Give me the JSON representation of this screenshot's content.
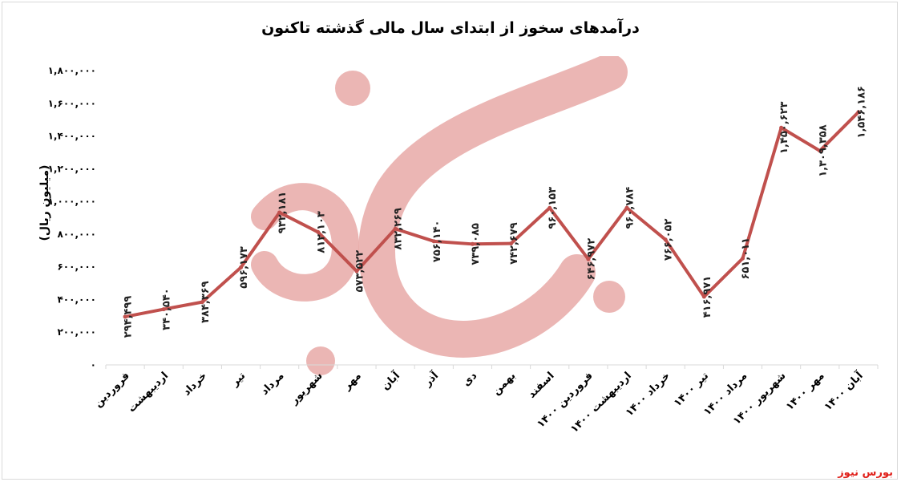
{
  "source_label": "بورس نیوز",
  "colors": {
    "line": "#c0504d",
    "watermark": "#e8a9a7",
    "source": "#e0201a",
    "grid": "#d9d9d9"
  },
  "watermark": {
    "text": "بورس نیوز"
  },
  "chart_data": {
    "type": "line",
    "title": "درآمدهای سخوز از ابتدای سال مالی گذشته تاکنون",
    "ylabel": "(میلیون ریال)",
    "xlabel": "",
    "ylim": [
      0,
      1800000
    ],
    "yticks": [
      0,
      200000,
      400000,
      600000,
      800000,
      1000000,
      1200000,
      1400000,
      1600000,
      1800000
    ],
    "ytick_labels": [
      "۰",
      "۲۰۰,۰۰۰",
      "۴۰۰,۰۰۰",
      "۶۰۰,۰۰۰",
      "۸۰۰,۰۰۰",
      "۱,۰۰۰,۰۰۰",
      "۱,۲۰۰,۰۰۰",
      "۱,۴۰۰,۰۰۰",
      "۱,۶۰۰,۰۰۰",
      "۱,۸۰۰,۰۰۰"
    ],
    "grid": false,
    "legend": "none",
    "categories": [
      "فروردین",
      "اردیبهشت",
      "خرداد",
      "تیر",
      "مرداد",
      "شهریور",
      "مهر",
      "آبان",
      "آذر",
      "دی",
      "بهمن",
      "اسفند",
      "فروردین ۱۴۰۰",
      "اردیبهشت ۱۴۰۰",
      "خرداد ۱۴۰۰",
      "تیر ۱۴۰۰",
      "مرداد ۱۴۰۰",
      "شهریور ۱۴۰۰",
      "مهر ۱۴۰۰",
      "آبان ۱۴۰۰"
    ],
    "values": [
      294499,
      340540,
      384369,
      596173,
      932181,
      812103,
      573522,
      832269,
      756140,
      739085,
      742679,
      960153,
      646972,
      960784,
      766052,
      416971,
      651011,
      1450623,
      1309358,
      1546186
    ],
    "data_labels": [
      "۲۹۴,۴۹۹",
      "۳۴۰,۵۴۰",
      "۳۸۴,۳۶۹",
      "۵۹۶,۱۷۳",
      "۹۳۲,۱۸۱",
      "۸۱۲,۱۰۳",
      "۵۷۳,۵۲۲",
      "۸۳۲,۲۶۹",
      "۷۵۶,۱۴۰",
      "۷۳۹,۰۸۵",
      "۷۴۲,۶۷۹",
      "۹۶۰,۱۵۳",
      "۶۴۶,۹۷۲",
      "۹۶۰,۷۸۴",
      "۷۶۶,۰۵۲",
      "۴۱۶,۹۷۱",
      "۶۵۱,۰۱۱",
      "۱,۴۵۰,۶۲۳",
      "۱,۳۰۹,۳۵۸",
      "۱,۵۴۶,۱۸۶"
    ]
  }
}
